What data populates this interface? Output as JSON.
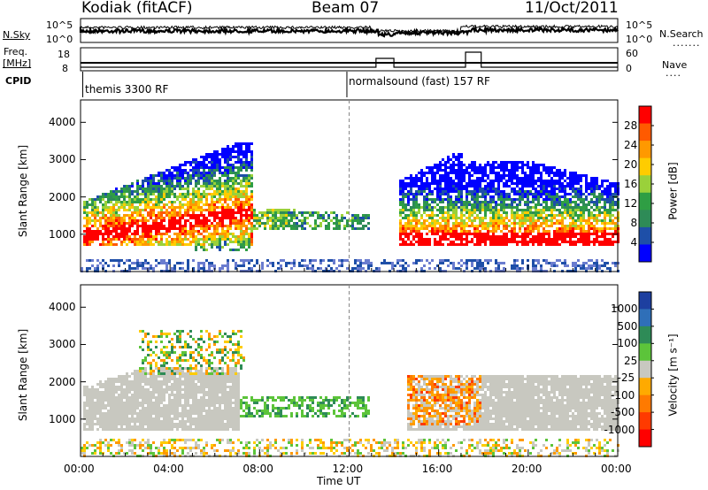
{
  "header": {
    "station": "Kodiak (fitACF)",
    "beam": "Beam 07",
    "date": "11/Oct/2011"
  },
  "status_panel": {
    "left_top": "N.Sky",
    "left_mid": "Freq.",
    "left_unit": "[MHz]",
    "left_bottom": "CPID",
    "right_top": "N.Search",
    "right_bottom": "Nave",
    "noise_ticks_left": [
      "10^5",
      "10^0"
    ],
    "noise_ticks_right": [
      "10^5",
      "10^0"
    ],
    "freq_ticks": [
      "18",
      "8"
    ],
    "nave_ticks": [
      "60",
      "0"
    ],
    "cpid_left": "themis 3300 RF",
    "cpid_right": "normalsound (fast) 157 RF"
  },
  "chart_data": [
    {
      "type": "heatmap",
      "title": "Power",
      "ylabel": "Slant Range [km]",
      "xlabel": "Time UT",
      "x_ticks": [
        "00:00",
        "04:00",
        "08:00",
        "12:00",
        "16:00",
        "20:00",
        "00:00"
      ],
      "y_ticks": [
        "1000",
        "2000",
        "3000",
        "4000"
      ],
      "ylim": [
        0,
        4600
      ],
      "xlim_hours": [
        0,
        24
      ],
      "colorbar_label": "Power [dB]",
      "colorbar_ticks": [
        "28",
        "24",
        "20",
        "16",
        "12",
        "8",
        "4"
      ],
      "colorbar_colors": [
        "#ff0000",
        "#ff5a00",
        "#ff9900",
        "#ffcc00",
        "#9ad13a",
        "#2f9e44",
        "#2e8b57",
        "#1e4fa8",
        "#0000ff"
      ],
      "echo_regions": [
        {
          "t0": 0.1,
          "t1": 7.5,
          "r0": 800,
          "r1": 2000,
          "level": "high"
        },
        {
          "t0": 14.2,
          "t1": 24,
          "r0": 700,
          "r1": 2200,
          "level": "high"
        }
      ]
    },
    {
      "type": "heatmap",
      "title": "Velocity",
      "ylabel": "Slant Range [km]",
      "xlabel": "Time UT",
      "x_ticks": [
        "00:00",
        "04:00",
        "08:00",
        "12:00",
        "16:00",
        "20:00",
        "00:00"
      ],
      "y_ticks": [
        "1000",
        "2000",
        "3000",
        "4000"
      ],
      "ylim": [
        0,
        4600
      ],
      "xlim_hours": [
        0,
        24
      ],
      "colorbar_label": "Velocity [m s⁻¹]",
      "colorbar_ticks": [
        "1000",
        "500",
        "100",
        "25",
        "-25",
        "-100",
        "-500",
        "-1000"
      ],
      "colorbar_colors": [
        "#1d3fa0",
        "#2f6fb8",
        "#2e8b57",
        "#5cc43a",
        "#c8c8c0",
        "#ffaa00",
        "#ff7a00",
        "#ff3a00",
        "#ff0000"
      ]
    }
  ],
  "xlabel": "Time UT"
}
